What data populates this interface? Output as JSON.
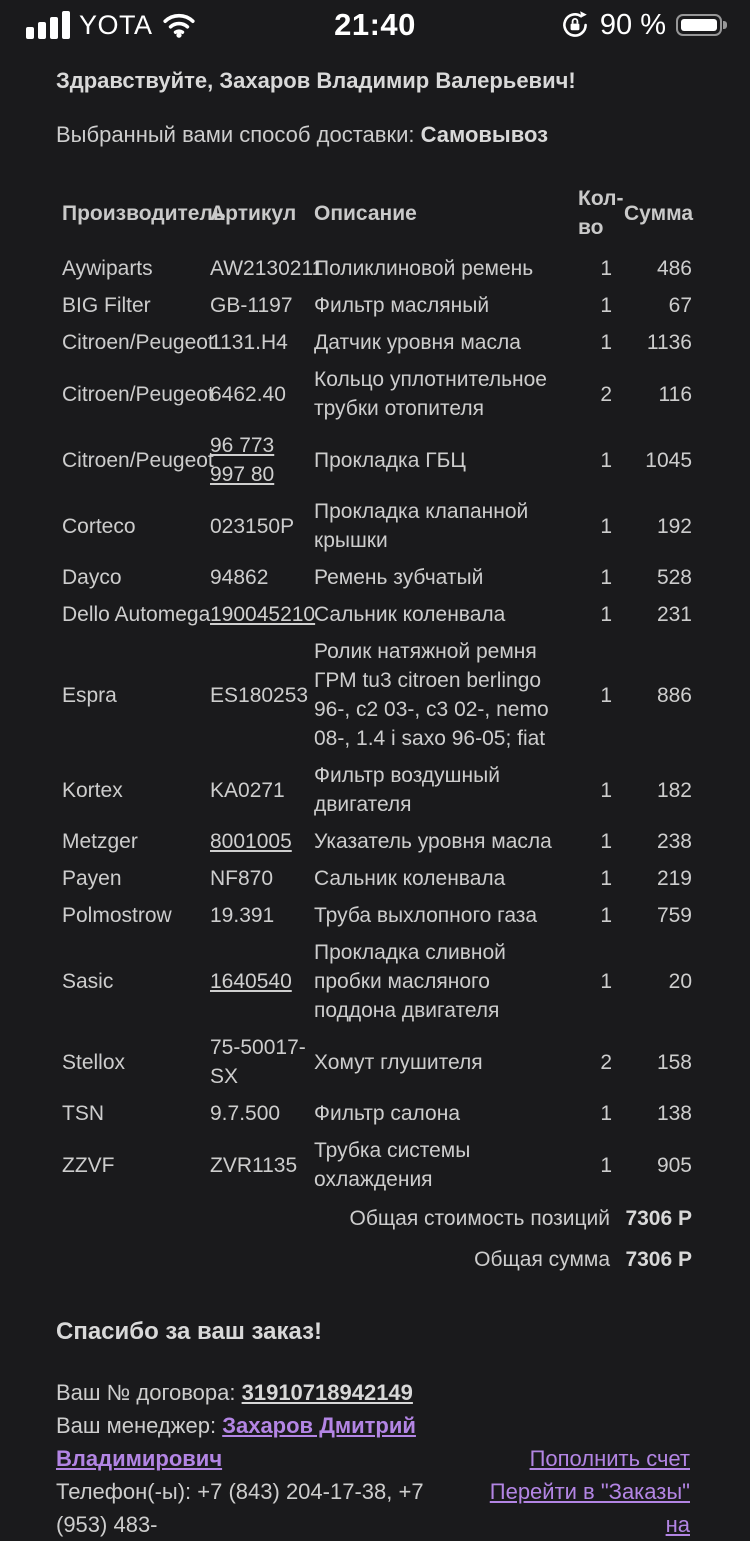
{
  "colors": {
    "background": "#1a1a1c",
    "text": "#cdcdcd",
    "bold_text": "#d9d9d9",
    "link_purple": "#b385e4",
    "status_white": "#ffffff"
  },
  "status_bar": {
    "carrier": "YOTA",
    "time": "21:40",
    "battery_label": "90 %",
    "battery_fill_percent": 90,
    "icons": [
      "signal-strength-icon",
      "wifi-icon",
      "orientation-lock-icon",
      "battery-icon"
    ]
  },
  "greeting": {
    "text": "Здравствуйте, Захаров Владимир Валерьевич!",
    "delivery_label": "Выбранный вами способ доставки: ",
    "delivery_value": "Самовывоз"
  },
  "table": {
    "headers": [
      "Производитель",
      "Артикул",
      "Описание",
      "Кол-во",
      "Сумма"
    ],
    "rows": [
      {
        "brand": "Aywiparts",
        "sku": "AW2130211",
        "sku_is_link": false,
        "desc": "Поликлиновой ремень",
        "qty": "1",
        "sum": "486"
      },
      {
        "brand": "BIG Filter",
        "sku": "GB-1197",
        "sku_is_link": false,
        "desc": "Фильтр масляный",
        "qty": "1",
        "sum": "67"
      },
      {
        "brand": "Citroen/Peugeot",
        "sku": "1131.H4",
        "sku_is_link": false,
        "desc": "Датчик уровня масла",
        "qty": "1",
        "sum": "1136"
      },
      {
        "brand": "Citroen/Peugeot",
        "sku": "6462.40",
        "sku_is_link": false,
        "desc": "Кольцо уплотнительное трубки отопителя",
        "qty": "2",
        "sum": "116"
      },
      {
        "brand": "Citroen/Peugeot",
        "sku": "96 773 997 80",
        "sku_is_link": true,
        "desc": "Прокладка ГБЦ",
        "qty": "1",
        "sum": "1045"
      },
      {
        "brand": "Corteco",
        "sku": "023150P",
        "sku_is_link": false,
        "desc": "Прокладка клапанной крышки",
        "qty": "1",
        "sum": "192"
      },
      {
        "brand": "Dayco",
        "sku": "94862",
        "sku_is_link": false,
        "desc": "Ремень зубчатый",
        "qty": "1",
        "sum": "528"
      },
      {
        "brand": "Dello Automega",
        "sku": "190045210",
        "sku_is_link": true,
        "desc": "Сальник коленвала",
        "qty": "1",
        "sum": "231"
      },
      {
        "brand": "Espra",
        "sku": "ES180253",
        "sku_is_link": false,
        "desc": "Ролик натяжной ремня ГРМ tu3 citroen berlingo 96-, c2 03-, c3 02-, nemo 08-, 1.4 i saxo 96-05; fiat",
        "qty": "1",
        "sum": "886"
      },
      {
        "brand": "Kortex",
        "sku": "KA0271",
        "sku_is_link": false,
        "desc": "Фильтр воздушный двигателя",
        "qty": "1",
        "sum": "182"
      },
      {
        "brand": "Metzger",
        "sku": "8001005",
        "sku_is_link": true,
        "desc": "Указатель уровня масла",
        "qty": "1",
        "sum": "238"
      },
      {
        "brand": "Payen",
        "sku": "NF870",
        "sku_is_link": false,
        "desc": "Сальник коленвала",
        "qty": "1",
        "sum": "219"
      },
      {
        "brand": "Polmostrow",
        "sku": "19.391",
        "sku_is_link": false,
        "desc": "Труба выхлопного газа",
        "qty": "1",
        "sum": "759"
      },
      {
        "brand": "Sasic",
        "sku": "1640540",
        "sku_is_link": true,
        "desc": "Прокладка сливной пробки масляного поддона двигателя",
        "qty": "1",
        "sum": "20"
      },
      {
        "brand": "Stellox",
        "sku": "75-50017-SX",
        "sku_is_link": false,
        "desc": "Хомут глушителя",
        "qty": "2",
        "sum": "158"
      },
      {
        "brand": "TSN",
        "sku": "9.7.500",
        "sku_is_link": false,
        "desc": "Фильтр салона",
        "qty": "1",
        "sum": "138"
      },
      {
        "brand": "ZZVF",
        "sku": "ZVR1135",
        "sku_is_link": false,
        "desc": "Трубка системы охлаждения",
        "qty": "1",
        "sum": "905"
      }
    ],
    "totals": [
      {
        "label": "Общая стоимость позиций",
        "amount": "7306",
        "currency": "Р"
      },
      {
        "label": "Общая сумма",
        "amount": "7306",
        "currency": "Р"
      }
    ]
  },
  "footer": {
    "thanks": "Спасибо за ваш заказ!",
    "contract_label": "Ваш № договора: ",
    "contract_number": "31910718942149",
    "manager_label": "Ваш менеджер: ",
    "manager_name": "Захаров Дмитрий Владимирович",
    "phones": "Телефон(-ы): +7 (843) 204-17-38, +7 (953) 483-",
    "links": [
      "Пополнить счет",
      "Перейти в \"Заказы\" на"
    ]
  }
}
